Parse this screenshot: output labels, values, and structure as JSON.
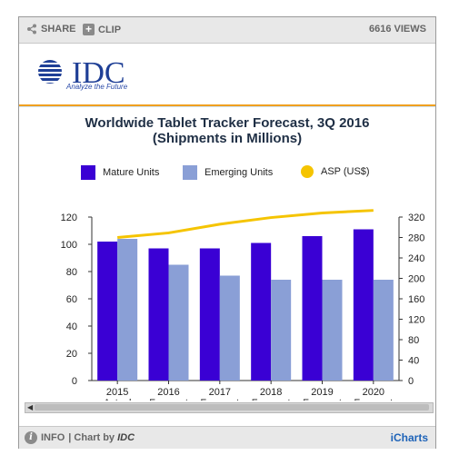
{
  "toolbar": {
    "share_label": "SHARE",
    "clip_label": "CLIP",
    "views_label": "6616 VIEWS"
  },
  "logo": {
    "text": "IDC",
    "tagline": "Analyze the Future"
  },
  "footer": {
    "info_label": "INFO",
    "chart_by_prefix": "| Chart by",
    "chart_by_name": "IDC",
    "brand": "iCharts"
  },
  "colors": {
    "mature": "#3a00d4",
    "emerging": "#8a9fd6",
    "asp": "#f5c400",
    "title": "#1f2f45",
    "accent_rule": "#f0a020"
  },
  "chart_data": {
    "type": "bar",
    "title_line1": "Worldwide Tablet Tracker Forecast, 3Q 2016",
    "title_line2": "(Shipments in Millions)",
    "categories": [
      [
        "2015",
        "Actual"
      ],
      [
        "2016",
        "Forecast"
      ],
      [
        "2017",
        "Forecast"
      ],
      [
        "2018",
        "Forecast"
      ],
      [
        "2019",
        "Forecast"
      ],
      [
        "2020",
        "Forecast"
      ]
    ],
    "series": [
      {
        "name": "Mature Units",
        "type": "bar",
        "axis": "left",
        "values": [
          102,
          97,
          97,
          101,
          106,
          111
        ]
      },
      {
        "name": "Emerging Units",
        "type": "bar",
        "axis": "left",
        "values": [
          104,
          85,
          77,
          74,
          74,
          74
        ]
      },
      {
        "name": "ASP (US$)",
        "type": "line",
        "axis": "right",
        "values": [
          280,
          289,
          306,
          319,
          328,
          333
        ]
      }
    ],
    "y_left": {
      "min": 0,
      "max": 120,
      "ticks": [
        0,
        20,
        40,
        60,
        80,
        100,
        120
      ]
    },
    "y_right": {
      "min": 0,
      "max": 320,
      "ticks": [
        0,
        40,
        80,
        120,
        160,
        200,
        240,
        280,
        320
      ]
    },
    "legend_position": "top",
    "grid": false
  }
}
